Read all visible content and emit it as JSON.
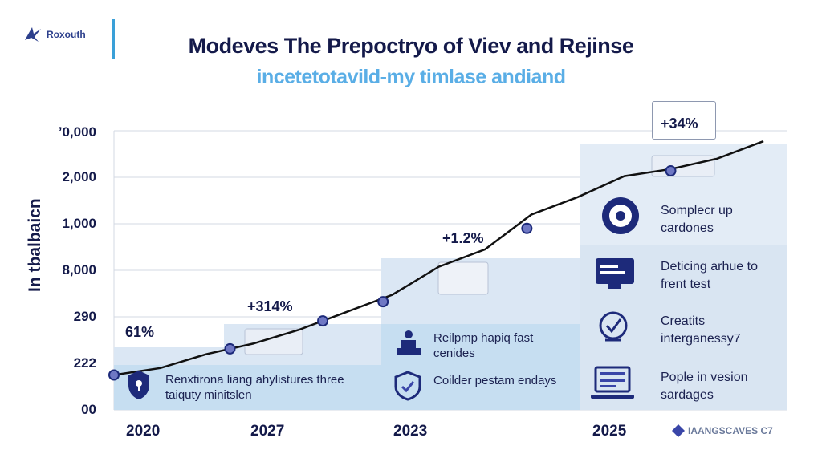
{
  "brand": {
    "logo_text": "Roxouth",
    "watermark": "IAANGSCAVES C7"
  },
  "colors": {
    "title": "#141a4a",
    "subtitle": "#5aaee6",
    "line": "#111111",
    "marker": "#3a46a8",
    "band": "#dbe7f4",
    "band_dark": "#c6def1"
  },
  "chart_data": {
    "type": "line",
    "title": "Modeves The Prepoctryo of Viev and Rejinse",
    "subtitle": "incetetotavild-my timlase andiand",
    "ylabel": "In tbalbaicn",
    "xlabel": "",
    "y_tick_labels": [
      "00",
      "222",
      "290",
      "8,000",
      "1,000",
      "2,000",
      "ʼ0,000"
    ],
    "x_tick_labels": [
      "2020",
      "2027",
      "2023",
      "2025"
    ],
    "x": [
      0,
      1,
      2,
      3,
      4,
      5,
      6,
      7,
      8,
      9,
      10,
      11,
      12,
      13,
      14
    ],
    "values": [
      1.0,
      1.2,
      1.6,
      1.9,
      2.3,
      2.8,
      3.3,
      4.1,
      4.6,
      5.6,
      6.1,
      6.7,
      6.9,
      7.2,
      7.7
    ],
    "ylim": [
      0,
      8
    ],
    "xlim": [
      0,
      14.5
    ],
    "markers": [
      {
        "x": 0,
        "y": 1.0
      },
      {
        "x": 2.5,
        "y": 1.75
      },
      {
        "x": 4.5,
        "y": 2.55
      },
      {
        "x": 5.8,
        "y": 3.1
      },
      {
        "x": 8.9,
        "y": 5.2
      },
      {
        "x": 12.0,
        "y": 6.85
      }
    ],
    "annotations": [
      "61%",
      "+314%",
      "+1.2%",
      "+34%"
    ]
  },
  "features": [
    {
      "text": "Renxtirona liang ahylistures three taiquty minitslen",
      "icon": "shield-icon"
    },
    {
      "text": "Reilpmp hapiq fast cenides",
      "icon": "podium-icon"
    },
    {
      "text": "Coilder pestam endays",
      "icon": "badge-icon"
    },
    {
      "text": "Somplecr up cardones",
      "icon": "target-icon"
    },
    {
      "text": "Deticing arhue to frent test",
      "icon": "screen-icon"
    },
    {
      "text": "Creatits interganessy7",
      "icon": "checkmark-icon"
    },
    {
      "text": "Pople in vesion sardages",
      "icon": "laptop-icon"
    }
  ]
}
